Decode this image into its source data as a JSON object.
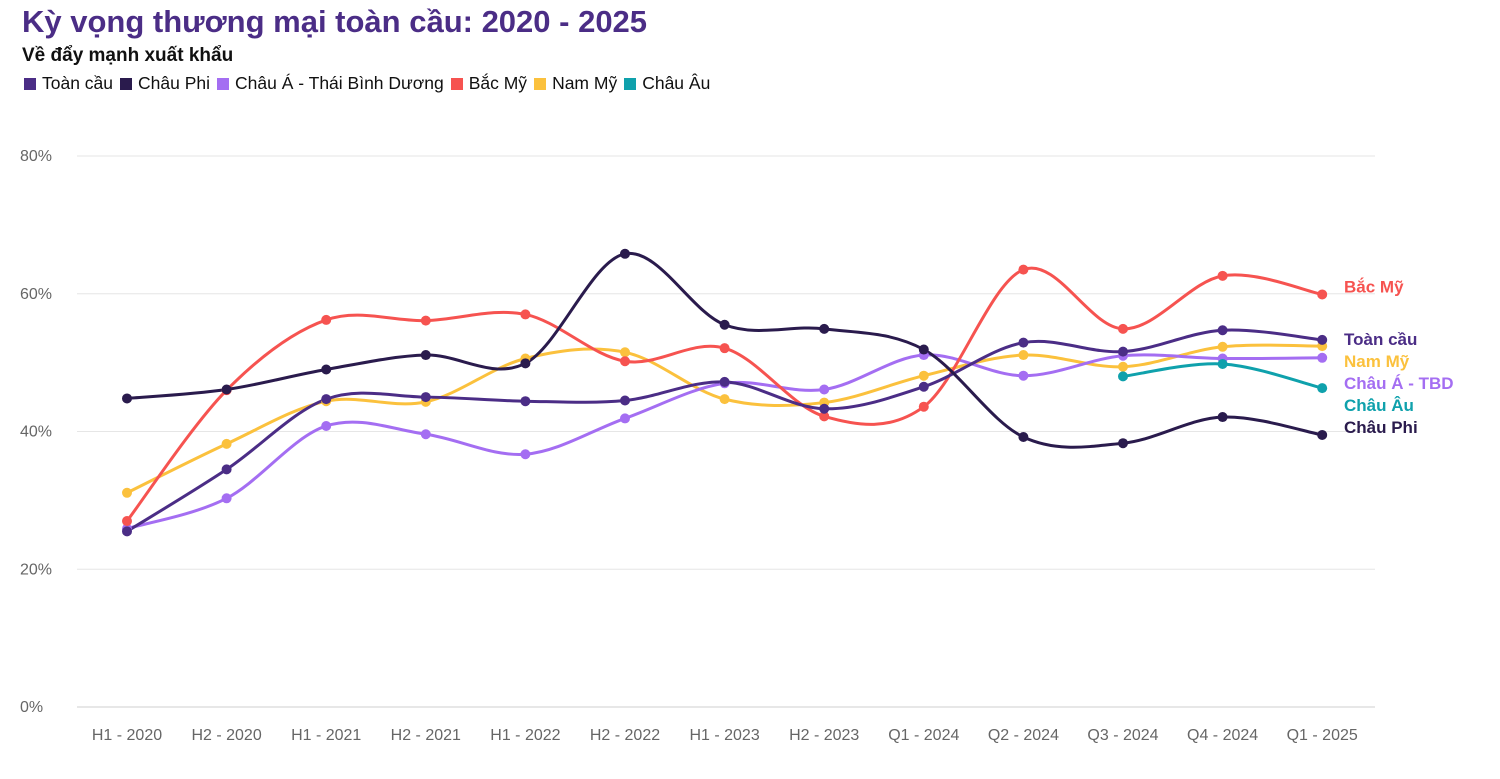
{
  "header": {
    "title": "Kỳ vọng thương mại toàn cầu: 2020 - 2025",
    "subtitle": "Về đẩy mạnh xuất khẩu"
  },
  "chart_data": {
    "type": "line",
    "title": "Kỳ vọng thương mại toàn cầu: 2020 - 2025",
    "subtitle": "Về đẩy mạnh xuất khẩu",
    "xlabel": "",
    "ylabel": "",
    "categories": [
      "H1 - 2020",
      "H2 - 2020",
      "H1 - 2021",
      "H2 - 2021",
      "H1 - 2022",
      "H2 - 2022",
      "H1 - 2023",
      "H2 - 2023",
      "Q1 - 2024",
      "Q2 - 2024",
      "Q3 - 2024",
      "Q4 - 2024",
      "Q1 - 2025"
    ],
    "ylim": [
      0,
      80
    ],
    "yticks": [
      0,
      20,
      40,
      60,
      80
    ],
    "ytick_labels": [
      "0%",
      "20%",
      "40%",
      "60%",
      "80%"
    ],
    "grid": true,
    "legend_position": "top-left",
    "series": [
      {
        "name": "Toàn cầu",
        "end_label": "Toàn cầu",
        "color": "#4b2d86",
        "values": [
          25.5,
          34.5,
          44.7,
          45.0,
          44.4,
          44.5,
          47.2,
          43.3,
          46.5,
          52.9,
          51.6,
          54.7,
          53.3
        ]
      },
      {
        "name": "Châu Phi",
        "end_label": "Châu Phi",
        "color": "#2a1b4d",
        "values": [
          44.8,
          46.1,
          49.0,
          51.1,
          49.9,
          65.8,
          55.5,
          54.9,
          51.9,
          39.2,
          38.3,
          42.1,
          39.5
        ]
      },
      {
        "name": "Châu Á - Thái Bình Dương",
        "end_label": "Châu Á - TBD",
        "color": "#a46ef2",
        "values": [
          25.9,
          30.3,
          40.8,
          39.6,
          36.7,
          41.9,
          47.0,
          46.1,
          51.1,
          48.1,
          51.0,
          50.6,
          50.7
        ]
      },
      {
        "name": "Bắc Mỹ",
        "end_label": "Bắc Mỹ",
        "color": "#f65350",
        "values": [
          27.0,
          46.0,
          56.2,
          56.1,
          57.0,
          50.2,
          52.1,
          42.2,
          43.6,
          63.5,
          54.9,
          62.6,
          59.9
        ]
      },
      {
        "name": "Nam Mỹ",
        "end_label": "Nam Mỹ",
        "color": "#fbc13d",
        "values": [
          31.1,
          38.2,
          44.4,
          44.3,
          50.6,
          51.5,
          44.7,
          44.2,
          48.1,
          51.1,
          49.4,
          52.3,
          52.4
        ]
      },
      {
        "name": "Châu Âu",
        "end_label": "Châu Âu",
        "color": "#0fa1ac",
        "values": [
          null,
          null,
          null,
          null,
          null,
          null,
          null,
          null,
          null,
          null,
          48.0,
          49.8,
          46.3
        ]
      }
    ]
  }
}
